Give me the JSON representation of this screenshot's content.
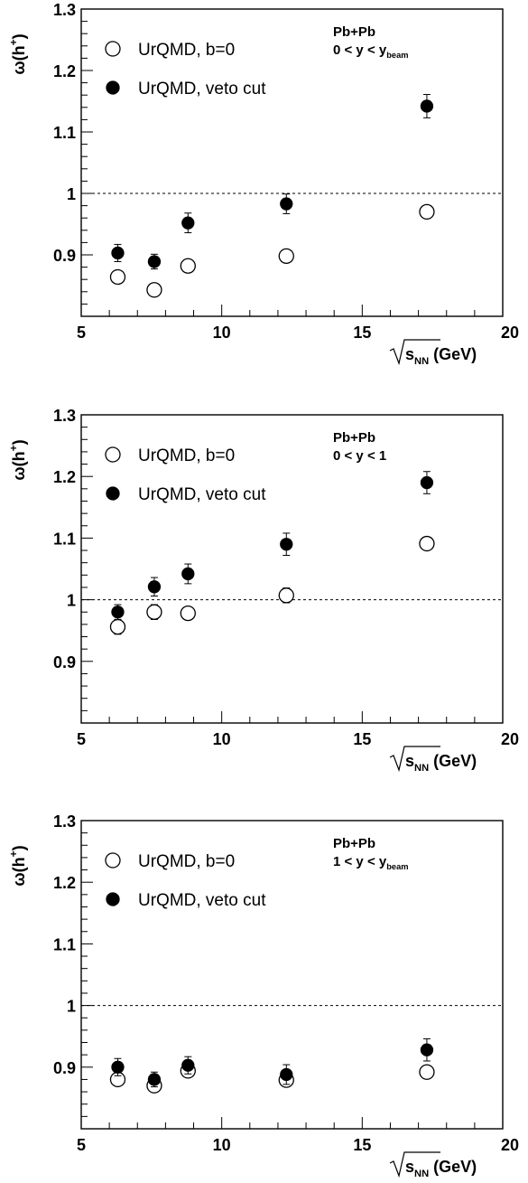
{
  "chart_data": [
    {
      "type": "scatter",
      "xlabel": "√s_NN (GeV)",
      "ylabel": "ω(h+)",
      "xlim": [
        5,
        20
      ],
      "ylim": [
        0.8,
        1.3
      ],
      "x_ticks": [
        "5",
        "10",
        "15",
        "20"
      ],
      "y_ticks": [
        "0.9",
        "1",
        "1.1",
        "1.2",
        "1.3"
      ],
      "reference_line": 1,
      "legend_position": "top-left",
      "annotation": {
        "system": "Pb+Pb",
        "rapidity": "0 < y < y_beam"
      },
      "series": [
        {
          "name": "UrQMD, b=0",
          "marker": "open-circle",
          "x": [
            6.3,
            7.6,
            8.8,
            12.3,
            17.3
          ],
          "y": [
            0.864,
            0.843,
            0.882,
            0.898,
            0.97
          ],
          "err": [
            0.005,
            0.005,
            0.005,
            0.005,
            0.005
          ]
        },
        {
          "name": "UrQMD, veto cut",
          "marker": "filled-circle",
          "x": [
            6.3,
            7.6,
            8.8,
            12.3,
            17.3
          ],
          "y": [
            0.903,
            0.889,
            0.952,
            0.983,
            1.142
          ],
          "err": [
            0.014,
            0.012,
            0.016,
            0.016,
            0.019
          ]
        }
      ]
    },
    {
      "type": "scatter",
      "xlabel": "√s_NN (GeV)",
      "ylabel": "ω(h+)",
      "xlim": [
        5,
        20
      ],
      "ylim": [
        0.8,
        1.3
      ],
      "x_ticks": [
        "5",
        "10",
        "15",
        "20"
      ],
      "y_ticks": [
        "0.9",
        "1",
        "1.1",
        "1.2",
        "1.3"
      ],
      "reference_line": 1,
      "legend_position": "top-left",
      "annotation": {
        "system": "Pb+Pb",
        "rapidity": "0 < y < 1"
      },
      "series": [
        {
          "name": "UrQMD, b=0",
          "marker": "open-circle",
          "x": [
            6.3,
            7.6,
            8.8,
            12.3,
            17.3
          ],
          "y": [
            0.956,
            0.98,
            0.978,
            1.007,
            1.091
          ],
          "err": [
            0.012,
            0.012,
            0.01,
            0.012,
            0.006
          ]
        },
        {
          "name": "UrQMD, veto cut",
          "marker": "filled-circle",
          "x": [
            6.3,
            7.6,
            8.8,
            12.3,
            17.3
          ],
          "y": [
            0.98,
            1.021,
            1.042,
            1.09,
            1.19
          ],
          "err": [
            0.012,
            0.015,
            0.016,
            0.018,
            0.018
          ]
        }
      ]
    },
    {
      "type": "scatter",
      "xlabel": "√s_NN (GeV)",
      "ylabel": "ω(h+)",
      "xlim": [
        5,
        20
      ],
      "ylim": [
        0.8,
        1.3
      ],
      "x_ticks": [
        "5",
        "10",
        "15",
        "20"
      ],
      "y_ticks": [
        "0.9",
        "1",
        "1.1",
        "1.2",
        "1.3"
      ],
      "reference_line": 1,
      "legend_position": "top-left",
      "annotation": {
        "system": "Pb+Pb",
        "rapidity": "1 < y < y_beam"
      },
      "series": [
        {
          "name": "UrQMD, b=0",
          "marker": "open-circle",
          "x": [
            6.3,
            7.6,
            8.8,
            12.3,
            17.3
          ],
          "y": [
            0.88,
            0.87,
            0.894,
            0.879,
            0.892
          ],
          "err": [
            0.008,
            0.01,
            0.01,
            0.008,
            0.006
          ]
        },
        {
          "name": "UrQMD, veto cut",
          "marker": "filled-circle",
          "x": [
            6.3,
            7.6,
            8.8,
            12.3,
            17.3
          ],
          "y": [
            0.9,
            0.88,
            0.903,
            0.888,
            0.928
          ],
          "err": [
            0.014,
            0.012,
            0.014,
            0.016,
            0.018
          ]
        }
      ]
    }
  ]
}
